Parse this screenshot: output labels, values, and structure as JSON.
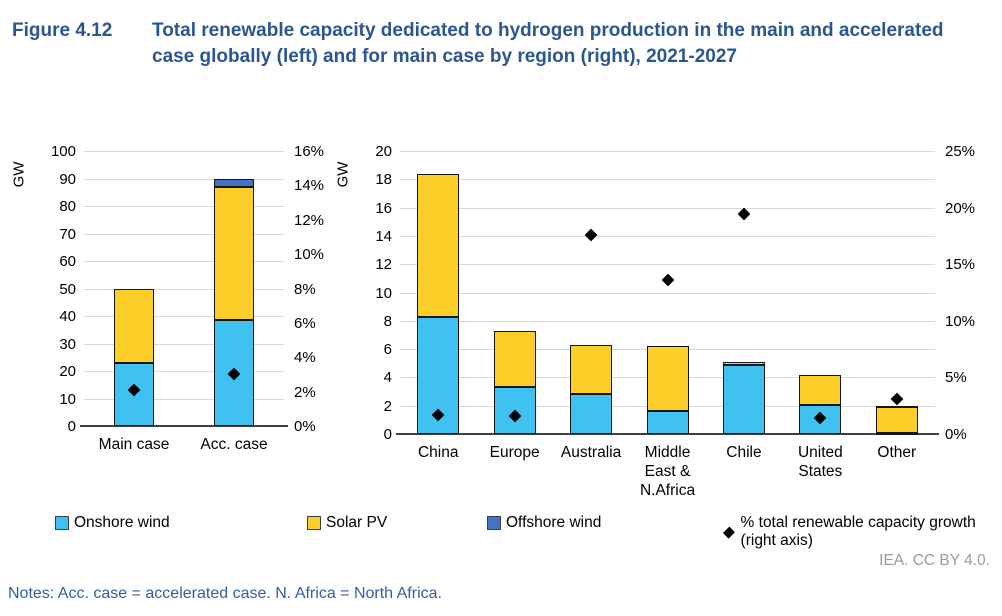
{
  "figure": {
    "label": "Figure 4.12",
    "title": "Total renewable capacity dedicated to hydrogen production in the main and accelerated case globally (left) and for main case by region (right), 2021-2027"
  },
  "source": "IEA. CC BY 4.0.",
  "notes": "Notes: Acc. case = accelerated case. N. Africa = North Africa.",
  "colors": {
    "onshore_wind": "#3FC2EF",
    "solar_pv": "#FBCE28",
    "offshore_wind": "#4472C4",
    "marker": "#000000",
    "title_text": "#2A5694",
    "gridline": "#D9D9D9",
    "axis_line": "#404040"
  },
  "legend": [
    {
      "label": "Onshore wind",
      "type": "square",
      "color_key": "onshore_wind"
    },
    {
      "label": "Solar PV",
      "type": "square",
      "color_key": "solar_pv"
    },
    {
      "label": "Offshore wind",
      "type": "square",
      "color_key": "offshore_wind"
    },
    {
      "label": "% total renewable capacity growth (right axis)",
      "type": "diamond",
      "color_key": "marker"
    }
  ],
  "chart_data": [
    {
      "id": "global",
      "type": "bar",
      "stacked": true,
      "title": "Main and accelerated case globally",
      "categories": [
        "Main case",
        "Acc. case"
      ],
      "x_labels_display": [
        "Main case",
        "Acc. case"
      ],
      "series": [
        {
          "name": "Onshore wind",
          "color_key": "onshore_wind",
          "values": [
            23,
            38.5
          ]
        },
        {
          "name": "Solar PV",
          "color_key": "solar_pv",
          "values": [
            27,
            48.5
          ]
        },
        {
          "name": "Offshore wind",
          "color_key": "offshore_wind",
          "values": [
            0,
            3
          ]
        }
      ],
      "markers": {
        "name": "% total renewable capacity growth (right axis)",
        "axis": "right",
        "values": [
          2.1,
          3.0
        ]
      },
      "left_axis": {
        "label": "GW",
        "min": 0,
        "max": 100,
        "step": 10
      },
      "right_axis": {
        "min": 0,
        "max": 16,
        "step": 2,
        "suffix": "%"
      },
      "grid": true
    },
    {
      "id": "regions",
      "type": "bar",
      "stacked": true,
      "title": "Main case by region",
      "categories": [
        "China",
        "Europe",
        "Australia",
        "Middle East & N.Africa",
        "Chile",
        "United States",
        "Other"
      ],
      "x_labels_display": [
        "China",
        "Europe",
        "Australia",
        "Middle\nEast &\nN.Africa",
        "Chile",
        "United\nStates",
        "Other"
      ],
      "series": [
        {
          "name": "Onshore wind",
          "color_key": "onshore_wind",
          "values": [
            8.3,
            3.3,
            2.8,
            1.6,
            4.9,
            2.05,
            0.1
          ]
        },
        {
          "name": "Solar PV",
          "color_key": "solar_pv",
          "values": [
            10.1,
            4.0,
            3.5,
            4.6,
            0.2,
            2.1,
            1.8
          ]
        },
        {
          "name": "Offshore wind",
          "color_key": "offshore_wind",
          "values": [
            0,
            0,
            0,
            0,
            0,
            0,
            0.1
          ]
        }
      ],
      "markers": {
        "name": "% total renewable capacity growth (right axis)",
        "axis": "right",
        "values": [
          1.7,
          1.6,
          17.6,
          13.6,
          19.4,
          1.4,
          3.1
        ]
      },
      "left_axis": {
        "label": "GW",
        "min": 0,
        "max": 20,
        "step": 2
      },
      "right_axis": {
        "min": 0,
        "max": 25,
        "step": 5,
        "suffix": "%"
      },
      "grid": true
    }
  ]
}
